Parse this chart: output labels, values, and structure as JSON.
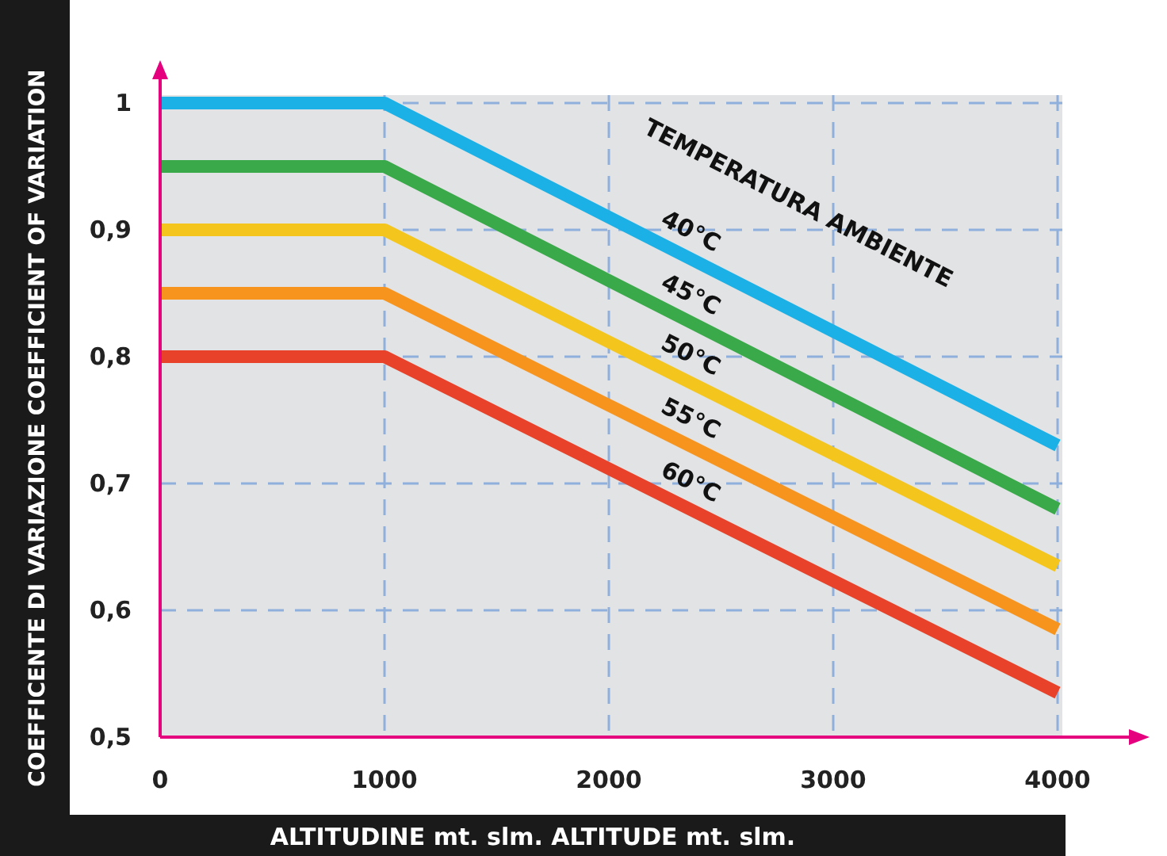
{
  "chart_data": {
    "type": "line",
    "xlabel": "ALTITUDINE mt. slm. ALTITUDE mt. slm.",
    "ylabel": "COEFFICENTE DI VARIAZIONE COEFFICIENT OF VARIATION",
    "legend_title": "TEMPERATURA AMBIENTE",
    "x": [
      0,
      1000,
      4000
    ],
    "series": [
      {
        "name": "40°C",
        "color": "#1cb1e6",
        "values": [
          1,
          1,
          0.73
        ]
      },
      {
        "name": "45°C",
        "color": "#3aa94a",
        "values": [
          0.95,
          0.95,
          0.68
        ]
      },
      {
        "name": "50°C",
        "color": "#f4c51d",
        "values": [
          0.9,
          0.9,
          0.635
        ]
      },
      {
        "name": "55°C",
        "color": "#f7941e",
        "values": [
          0.85,
          0.85,
          0.585
        ]
      },
      {
        "name": "60°C",
        "color": "#e8432a",
        "values": [
          0.8,
          0.8,
          0.535
        ]
      }
    ],
    "xlim": [
      0,
      4000
    ],
    "xticks": [
      0,
      1000,
      2000,
      3000,
      4000
    ],
    "ylim": [
      0.5,
      1
    ],
    "yticks": [
      {
        "value": 0.5,
        "label": "0,5"
      },
      {
        "value": 0.6,
        "label": "0,6"
      },
      {
        "value": 0.7,
        "label": "0,7"
      },
      {
        "value": 0.8,
        "label": "0,8"
      },
      {
        "value": 0.9,
        "label": "0,9"
      },
      1
    ],
    "grid": true,
    "marker": "none",
    "line_style": "solid"
  }
}
